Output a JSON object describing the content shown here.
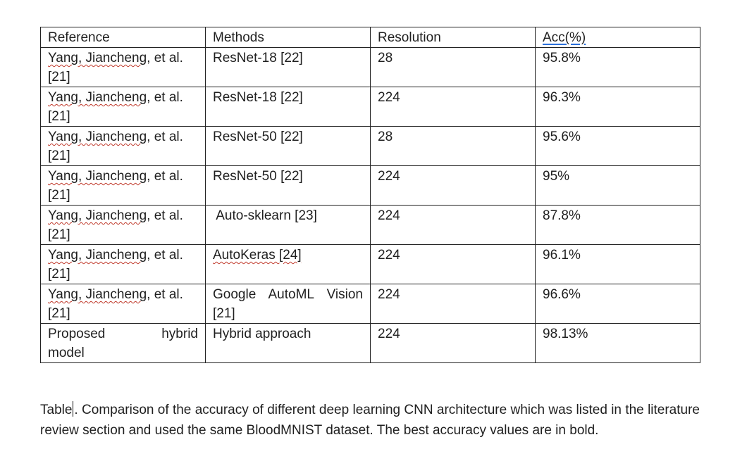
{
  "table": {
    "headers": [
      "Reference",
      "Methods",
      "Resolution",
      "Acc(%)"
    ],
    "rows": [
      {
        "ref_name": "Yang, Jiancheng",
        "ref_suffix": ", et al.",
        "ref_cite": "[21]",
        "method": "ResNet-18 [22]",
        "resolution": "28",
        "acc": "95.8%"
      },
      {
        "ref_name": "Yang, Jiancheng",
        "ref_suffix": ", et al.",
        "ref_cite": "[21]",
        "method": "ResNet-18 [22]",
        "resolution": "224",
        "acc": "96.3%"
      },
      {
        "ref_name": "Yang, Jiancheng",
        "ref_suffix": ", et al.",
        "ref_cite": "[21]",
        "method": "ResNet-50 [22]",
        "resolution": "28",
        "acc": "95.6%"
      },
      {
        "ref_name": "Yang, Jiancheng",
        "ref_suffix": ", et al.",
        "ref_cite": "[21]",
        "method": "ResNet-50 [22]",
        "resolution": "224",
        "acc": "95%"
      },
      {
        "ref_name": "Yang, Jiancheng",
        "ref_suffix": ", et al.",
        "ref_cite": "[21]",
        "method": " Auto-sklearn [23]",
        "resolution": "224",
        "acc": "87.8%"
      },
      {
        "ref_name": "Yang, Jiancheng",
        "ref_suffix": ", et al.",
        "ref_cite": "[21]",
        "method": "AutoKeras [24]",
        "resolution": "224",
        "acc": "96.1%"
      },
      {
        "ref_name": "Yang, Jiancheng",
        "ref_suffix": ", et al.",
        "ref_cite": "[21]",
        "method_line1": "Google AutoML Vision",
        "method_line2": "[21]",
        "resolution": "224",
        "acc": "96.6%"
      },
      {
        "ref_line1": "Proposed hybrid",
        "ref_line2": "model",
        "method": "Hybrid approach",
        "resolution": "224",
        "acc": "98.13%"
      }
    ]
  },
  "caption": {
    "label": "Table",
    "text": ". Comparison of the accuracy of different deep learning CNN architecture which was listed in the literature review section and used the same BloodMNIST dataset. The best accuracy values are in bold."
  },
  "colors": {
    "text": "#1f1f1f",
    "border": "#222222",
    "spellcheck": "#c0392b",
    "grammar": "#2a6fdb"
  }
}
